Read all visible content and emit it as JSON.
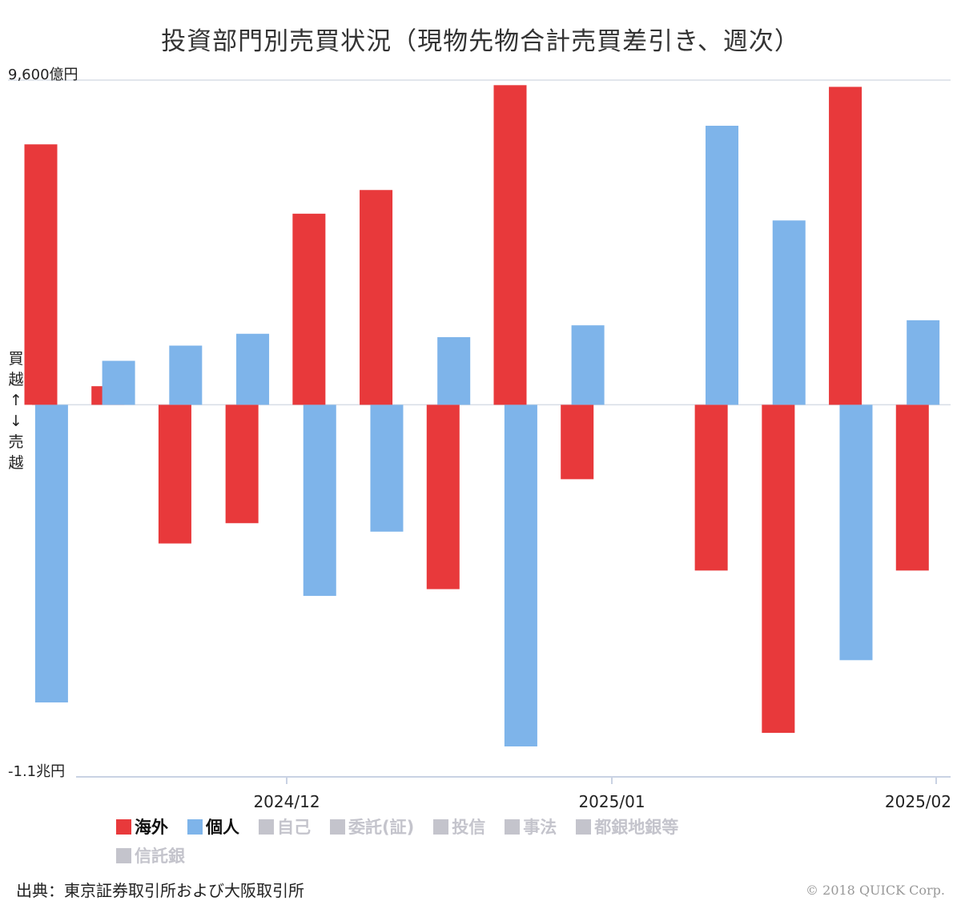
{
  "title": "投資部門別売買状況（現物先物合計売買差引き、週次）",
  "chart_data": {
    "type": "bar",
    "y_unit": "億円",
    "ylim": [
      -11000,
      9600
    ],
    "y_top_label": "9,600億円",
    "y_bottom_label": "-1.1兆円",
    "side_label_buy": "買越",
    "side_label_arrows": "↑↓",
    "side_label_sell": "売越",
    "x_tick_labels": [
      "2024/12",
      "2025/01",
      "2025/02"
    ],
    "series": [
      {
        "name": "海外",
        "color": "#e8393b",
        "visible": true,
        "values": [
          7700,
          550,
          -4100,
          -3500,
          5650,
          6350,
          -5450,
          9450,
          -2200,
          null,
          -4900,
          -9700,
          9400,
          -4900
        ]
      },
      {
        "name": "個人",
        "color": "#7eb4ea",
        "visible": true,
        "values": [
          -8800,
          1300,
          1750,
          2100,
          -5650,
          -3750,
          2000,
          -10100,
          2350,
          null,
          8250,
          5450,
          -7550,
          2500
        ]
      }
    ]
  },
  "legend": {
    "rows": [
      [
        {
          "label": "海外",
          "color": "#e8393b",
          "active": true
        },
        {
          "label": "個人",
          "color": "#7eb4ea",
          "active": true
        },
        {
          "label": "自己",
          "color": "#c4c4cc",
          "active": false
        },
        {
          "label": "委託(証)",
          "color": "#c4c4cc",
          "active": false
        },
        {
          "label": "投信",
          "color": "#c4c4cc",
          "active": false
        },
        {
          "label": "事法",
          "color": "#c4c4cc",
          "active": false
        },
        {
          "label": "都銀地銀等",
          "color": "#c4c4cc",
          "active": false
        }
      ],
      [
        {
          "label": "信託銀",
          "color": "#c4c4cc",
          "active": false
        }
      ]
    ]
  },
  "source": "出典：東京証券取引所および大阪取引所",
  "copyright": "© 2018 QUICK Corp."
}
